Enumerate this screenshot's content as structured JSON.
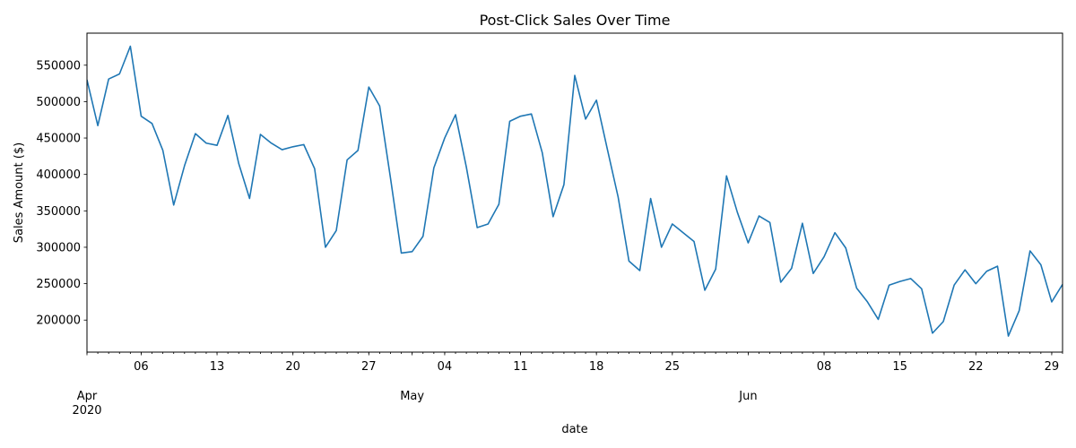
{
  "chart_data": {
    "type": "line",
    "title": "Post-Click Sales Over Time",
    "xlabel": "date",
    "ylabel": "Sales Amount ($)",
    "ylim": [
      156000,
      594000
    ],
    "grid": false,
    "x_range": [
      "2020-04-01",
      "2020-06-30"
    ],
    "y_ticks": [
      200000,
      250000,
      300000,
      350000,
      400000,
      450000,
      500000,
      550000
    ],
    "x_major_ticks": [
      {
        "date": "2020-04-06",
        "label": "06"
      },
      {
        "date": "2020-04-13",
        "label": "13"
      },
      {
        "date": "2020-04-20",
        "label": "20"
      },
      {
        "date": "2020-04-27",
        "label": "27"
      },
      {
        "date": "2020-05-04",
        "label": "04"
      },
      {
        "date": "2020-05-11",
        "label": "11"
      },
      {
        "date": "2020-05-18",
        "label": "18"
      },
      {
        "date": "2020-05-25",
        "label": "25"
      },
      {
        "date": "2020-06-08",
        "label": "08"
      },
      {
        "date": "2020-06-15",
        "label": "15"
      },
      {
        "date": "2020-06-22",
        "label": "22"
      },
      {
        "date": "2020-06-29",
        "label": "29"
      }
    ],
    "x_month_labels": [
      {
        "date": "2020-04-01",
        "label": "Apr",
        "sublabel": "2020"
      },
      {
        "date": "2020-05-01",
        "label": "May",
        "sublabel": ""
      },
      {
        "date": "2020-06-01",
        "label": "Jun",
        "sublabel": ""
      }
    ],
    "series": [
      {
        "color": "#1f77b4",
        "x": [
          "2020-04-01",
          "2020-04-02",
          "2020-04-03",
          "2020-04-04",
          "2020-04-05",
          "2020-04-06",
          "2020-04-07",
          "2020-04-08",
          "2020-04-09",
          "2020-04-10",
          "2020-04-11",
          "2020-04-12",
          "2020-04-13",
          "2020-04-14",
          "2020-04-15",
          "2020-04-16",
          "2020-04-17",
          "2020-04-18",
          "2020-04-19",
          "2020-04-20",
          "2020-04-21",
          "2020-04-22",
          "2020-04-23",
          "2020-04-24",
          "2020-04-25",
          "2020-04-26",
          "2020-04-27",
          "2020-04-28",
          "2020-04-29",
          "2020-04-30",
          "2020-05-01",
          "2020-05-02",
          "2020-05-03",
          "2020-05-04",
          "2020-05-05",
          "2020-05-06",
          "2020-05-07",
          "2020-05-08",
          "2020-05-09",
          "2020-05-10",
          "2020-05-11",
          "2020-05-12",
          "2020-05-13",
          "2020-05-14",
          "2020-05-15",
          "2020-05-16",
          "2020-05-17",
          "2020-05-18",
          "2020-05-19",
          "2020-05-20",
          "2020-05-21",
          "2020-05-22",
          "2020-05-23",
          "2020-05-24",
          "2020-05-25",
          "2020-05-26",
          "2020-05-27",
          "2020-05-28",
          "2020-05-29",
          "2020-05-30",
          "2020-05-31",
          "2020-06-01",
          "2020-06-02",
          "2020-06-03",
          "2020-06-04",
          "2020-06-05",
          "2020-06-06",
          "2020-06-07",
          "2020-06-08",
          "2020-06-09",
          "2020-06-10",
          "2020-06-11",
          "2020-06-12",
          "2020-06-13",
          "2020-06-14",
          "2020-06-15",
          "2020-06-16",
          "2020-06-17",
          "2020-06-18",
          "2020-06-19",
          "2020-06-20",
          "2020-06-21",
          "2020-06-22",
          "2020-06-23",
          "2020-06-24",
          "2020-06-25",
          "2020-06-26",
          "2020-06-27",
          "2020-06-28",
          "2020-06-29",
          "2020-06-30"
        ],
        "y": [
          530000,
          467000,
          531000,
          538000,
          576000,
          480000,
          470000,
          433000,
          358000,
          412000,
          456000,
          443000,
          440000,
          481000,
          415000,
          367000,
          455000,
          443000,
          434000,
          438000,
          441000,
          408000,
          300000,
          323000,
          420000,
          433000,
          520000,
          494000,
          395000,
          292000,
          294000,
          315000,
          409000,
          450000,
          482000,
          410000,
          327000,
          332000,
          359000,
          473000,
          480000,
          483000,
          430000,
          342000,
          386000,
          536000,
          476000,
          502000,
          435000,
          369000,
          281000,
          268000,
          367000,
          300000,
          332000,
          320000,
          308000,
          241000,
          270000,
          398000,
          348000,
          306000,
          343000,
          334000,
          252000,
          271000,
          333000,
          264000,
          287000,
          320000,
          299000,
          244000,
          225000,
          201000,
          248000,
          253000,
          257000,
          243000,
          182000,
          198000,
          248000,
          269000,
          250000,
          267000,
          274000,
          178000,
          213000,
          295000,
          276000,
          225000,
          249000
        ]
      }
    ]
  }
}
